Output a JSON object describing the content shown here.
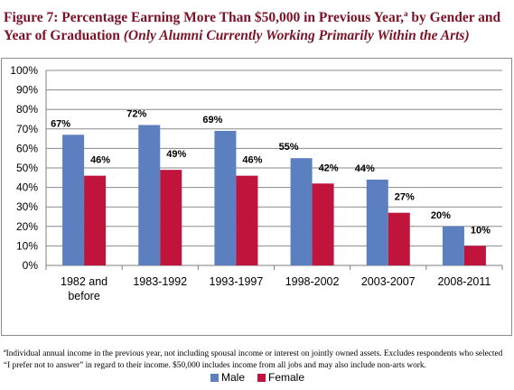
{
  "figure": {
    "title_main": "Figure 7: Percentage Earning More Than $50,000 in Previous Year,",
    "title_marker": "a",
    "title_rest": " by Gender and Year of Graduation ",
    "title_italic": "(Only Alumni Currently Working Primarily Within the Arts)"
  },
  "footnote": {
    "marker": "a",
    "text": "Individual annual income in the previous year, not including spousal income or interest on jointly owned assets. Excludes respondents who selected “I prefer not to answer” in regard to their income. $50,000 includes income from all jobs and may also include non-arts work."
  },
  "chart_data": {
    "type": "bar",
    "categories": [
      [
        "1982 and",
        "before"
      ],
      [
        "1983-1992"
      ],
      [
        "1993-1997"
      ],
      [
        "1998-2002"
      ],
      [
        "2003-2007"
      ],
      [
        "2008-2011"
      ]
    ],
    "series": [
      {
        "name": "Male",
        "values": [
          67,
          72,
          69,
          55,
          44,
          20
        ],
        "labels": [
          "67%",
          "72%",
          "69%",
          "55%",
          "44%",
          "20%"
        ],
        "color": "#5b7fbf"
      },
      {
        "name": "Female",
        "values": [
          46,
          49,
          46,
          42,
          27,
          10
        ],
        "labels": [
          "46%",
          "49%",
          "46%",
          "42%",
          "27%",
          "10%"
        ],
        "color": "#c0143c"
      }
    ],
    "ylim": [
      0,
      100
    ],
    "yticks": [
      0,
      10,
      20,
      30,
      40,
      50,
      60,
      70,
      80,
      90,
      100
    ],
    "ytick_labels": [
      "0%",
      "10%",
      "20%",
      "30%",
      "40%",
      "50%",
      "60%",
      "70%",
      "80%",
      "90%",
      "100%"
    ],
    "grid": true,
    "legend_position": "bottom",
    "gridline_color": "#8a8a8a",
    "axis_color": "#7f7f7f"
  }
}
